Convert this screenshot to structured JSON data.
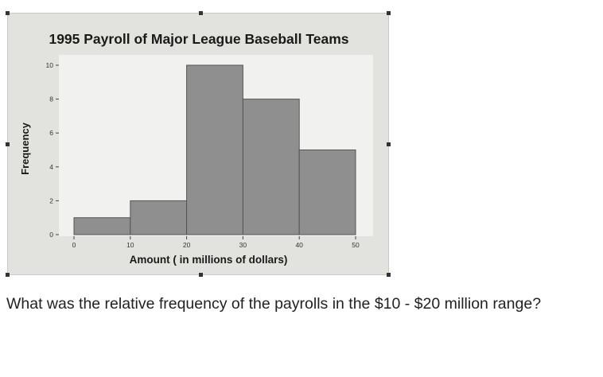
{
  "chart_data": {
    "type": "bar",
    "title": "1995 Payroll of Major League Baseball Teams",
    "xlabel": "Amount ( in millions of dollars)",
    "ylabel": "Frequency",
    "bins": [
      [
        0,
        10
      ],
      [
        10,
        20
      ],
      [
        20,
        30
      ],
      [
        30,
        40
      ],
      [
        40,
        50
      ]
    ],
    "values": [
      1,
      2,
      10,
      8,
      5
    ],
    "xticks": [
      0,
      10,
      20,
      30,
      40,
      50
    ],
    "yticks": [
      0,
      2,
      4,
      6,
      8,
      10
    ],
    "xlim": [
      0,
      50
    ],
    "ylim": [
      0,
      10
    ],
    "grid": false,
    "colors": {
      "bar_fill": "#8f8f8f",
      "bar_stroke": "#555555",
      "plot_bg": "#f1f1ef",
      "frame_bg": "#e2e2de"
    }
  },
  "question": {
    "text": "What was the relative frequency of the payrolls in the $10 - $20 million range?"
  }
}
